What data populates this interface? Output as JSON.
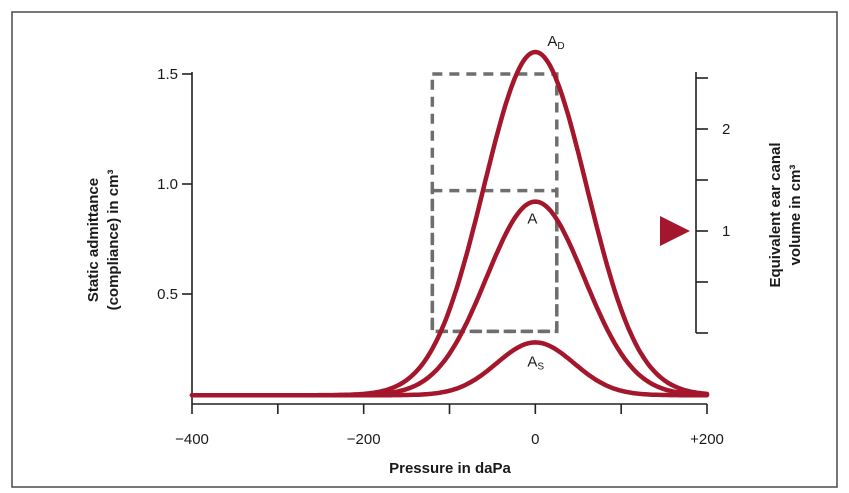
{
  "chart_data": {
    "type": "line",
    "xlabel": "Pressure in daPa",
    "ylabel": [
      "Static admittance",
      "(compliance) in cm³"
    ],
    "y2label": [
      "Equivalent ear canal",
      "volume in cm³"
    ],
    "xlim": [
      -400,
      200
    ],
    "ylim": [
      0,
      1.75
    ],
    "x_ticks": [
      -400,
      -300,
      -200,
      -100,
      0,
      100,
      200
    ],
    "x_tick_labels": [
      {
        "x": -400,
        "label": "−400"
      },
      {
        "x": -200,
        "label": "−200"
      },
      {
        "x": 0,
        "label": "0"
      },
      {
        "x": 200,
        "label": "+200"
      }
    ],
    "y_ticks": [
      {
        "y": 0.5,
        "label": "0.5"
      },
      {
        "y": 1.0,
        "label": "1.0"
      },
      {
        "y": 1.5,
        "label": "1.5"
      }
    ],
    "y2_ticks": [
      {
        "v": 0,
        "label": ""
      },
      {
        "v": 0.5,
        "label": ""
      },
      {
        "v": 1,
        "label": "1"
      },
      {
        "v": 1.5,
        "label": ""
      },
      {
        "v": 2,
        "label": "2"
      },
      {
        "v": 2.5,
        "label": ""
      }
    ],
    "y2_marker": 1,
    "baseline": 0.04,
    "series": [
      {
        "label_main": "A",
        "label_sub": "D",
        "peak_x": 0,
        "peak_y": 1.6,
        "halfwidth": 60
      },
      {
        "label_main": "A",
        "label_sub": "",
        "peak_x": 0,
        "peak_y": 0.92,
        "halfwidth": 57
      },
      {
        "label_main": "A",
        "label_sub": "S",
        "peak_x": 0,
        "peak_y": 0.28,
        "halfwidth": 45
      }
    ],
    "dashed_boxes": [
      {
        "x": [
          -120,
          25
        ],
        "y": [
          0.33,
          1.5
        ]
      },
      {
        "x": [
          -120,
          25
        ],
        "y": [
          0.33,
          0.97
        ]
      }
    ]
  }
}
